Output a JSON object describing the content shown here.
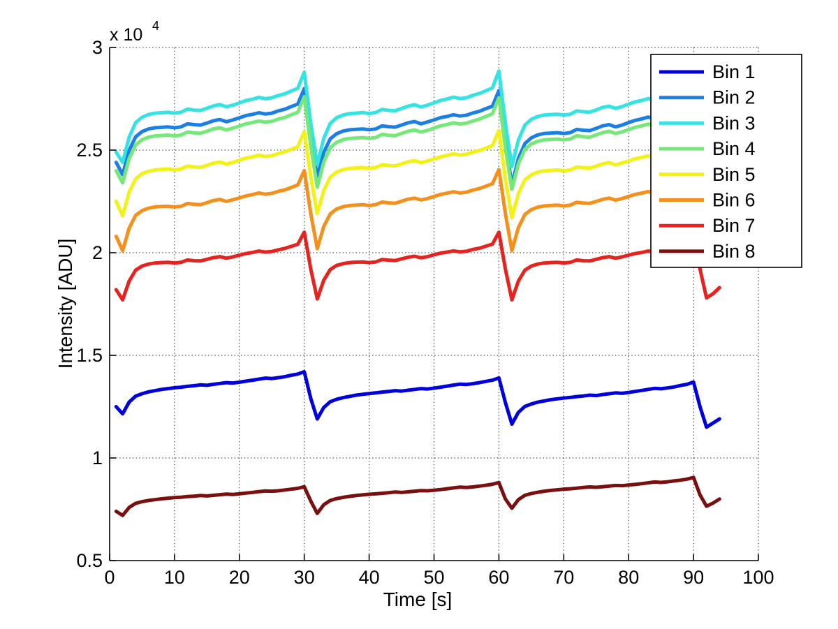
{
  "chart_data": {
    "type": "line",
    "title": "",
    "xlabel": "Time [s]",
    "ylabel": "Intensity [ADU]",
    "y_multiplier": {
      "base": "x 10",
      "exp": "4"
    },
    "xlim": [
      0,
      100
    ],
    "ylim": [
      0.5,
      3
    ],
    "xticks": [
      0,
      10,
      20,
      30,
      40,
      50,
      60,
      70,
      80,
      90,
      100
    ],
    "yticks": [
      0.5,
      1,
      1.5,
      2,
      2.5,
      3
    ],
    "grid": true,
    "grid_style": "dotted",
    "grid_color": "#262626",
    "axis_color": "#000000",
    "x_start": 1,
    "x_step": 1,
    "x_units": "s",
    "y_units_scale": "values are in units of 1e4 ADU",
    "legend_position": "northeast",
    "series": [
      {
        "name": "Bin 1",
        "color": "#0000dd",
        "values": [
          1.25,
          1.215,
          1.272,
          1.301,
          1.313,
          1.322,
          1.328,
          1.334,
          1.338,
          1.342,
          1.345,
          1.349,
          1.352,
          1.356,
          1.354,
          1.359,
          1.363,
          1.367,
          1.365,
          1.369,
          1.374,
          1.379,
          1.384,
          1.389,
          1.387,
          1.391,
          1.396,
          1.403,
          1.409,
          1.42,
          1.29,
          1.19,
          1.246,
          1.274,
          1.286,
          1.294,
          1.3,
          1.306,
          1.31,
          1.314,
          1.317,
          1.321,
          1.324,
          1.328,
          1.326,
          1.33,
          1.334,
          1.338,
          1.336,
          1.34,
          1.345,
          1.35,
          1.355,
          1.36,
          1.358,
          1.362,
          1.367,
          1.373,
          1.379,
          1.39,
          1.27,
          1.165,
          1.222,
          1.251,
          1.263,
          1.272,
          1.278,
          1.284,
          1.288,
          1.292,
          1.295,
          1.299,
          1.302,
          1.306,
          1.304,
          1.309,
          1.313,
          1.317,
          1.315,
          1.319,
          1.324,
          1.329,
          1.334,
          1.339,
          1.337,
          1.341,
          1.346,
          1.353,
          1.359,
          1.37,
          1.25,
          1.15,
          1.17,
          1.19
        ]
      },
      {
        "name": "Bin 2",
        "color": "#1b7fe4",
        "values": [
          2.44,
          2.38,
          2.498,
          2.565,
          2.59,
          2.603,
          2.609,
          2.611,
          2.613,
          2.609,
          2.613,
          2.628,
          2.624,
          2.622,
          2.632,
          2.643,
          2.649,
          2.638,
          2.647,
          2.657,
          2.668,
          2.674,
          2.682,
          2.676,
          2.68,
          2.691,
          2.699,
          2.712,
          2.724,
          2.8,
          2.56,
          2.37,
          2.488,
          2.555,
          2.58,
          2.593,
          2.599,
          2.601,
          2.603,
          2.599,
          2.603,
          2.618,
          2.614,
          2.612,
          2.622,
          2.633,
          2.639,
          2.628,
          2.637,
          2.647,
          2.658,
          2.664,
          2.672,
          2.666,
          2.67,
          2.681,
          2.689,
          2.702,
          2.714,
          2.79,
          2.54,
          2.33,
          2.459,
          2.532,
          2.56,
          2.574,
          2.581,
          2.583,
          2.585,
          2.581,
          2.585,
          2.601,
          2.597,
          2.595,
          2.606,
          2.618,
          2.624,
          2.613,
          2.622,
          2.634,
          2.645,
          2.652,
          2.661,
          2.654,
          2.659,
          2.67,
          2.68,
          2.693,
          2.707,
          2.79,
          2.55,
          2.35,
          2.37,
          2.4
        ]
      },
      {
        "name": "Bin 3",
        "color": "#35e3e3",
        "values": [
          2.49,
          2.44,
          2.563,
          2.634,
          2.66,
          2.673,
          2.68,
          2.682,
          2.684,
          2.68,
          2.684,
          2.7,
          2.695,
          2.693,
          2.704,
          2.715,
          2.722,
          2.711,
          2.719,
          2.73,
          2.741,
          2.748,
          2.757,
          2.75,
          2.755,
          2.766,
          2.774,
          2.788,
          2.801,
          2.88,
          2.63,
          2.43,
          2.557,
          2.63,
          2.658,
          2.671,
          2.678,
          2.68,
          2.683,
          2.678,
          2.683,
          2.698,
          2.694,
          2.692,
          2.703,
          2.714,
          2.721,
          2.71,
          2.719,
          2.73,
          2.742,
          2.749,
          2.758,
          2.751,
          2.755,
          2.767,
          2.776,
          2.789,
          2.803,
          2.885,
          2.63,
          2.42,
          2.549,
          2.622,
          2.65,
          2.664,
          2.671,
          2.673,
          2.675,
          2.671,
          2.675,
          2.691,
          2.687,
          2.685,
          2.696,
          2.708,
          2.714,
          2.703,
          2.712,
          2.724,
          2.735,
          2.742,
          2.751,
          2.744,
          2.749,
          2.76,
          2.77,
          2.783,
          2.797,
          2.88,
          2.63,
          2.42,
          2.44,
          2.47
        ]
      },
      {
        "name": "Bin 4",
        "color": "#74e878",
        "values": [
          2.4,
          2.34,
          2.458,
          2.525,
          2.55,
          2.563,
          2.569,
          2.571,
          2.573,
          2.569,
          2.573,
          2.588,
          2.584,
          2.582,
          2.592,
          2.603,
          2.609,
          2.598,
          2.607,
          2.617,
          2.628,
          2.634,
          2.642,
          2.636,
          2.64,
          2.651,
          2.659,
          2.672,
          2.684,
          2.76,
          2.52,
          2.32,
          2.442,
          2.511,
          2.538,
          2.551,
          2.557,
          2.559,
          2.561,
          2.557,
          2.561,
          2.577,
          2.572,
          2.57,
          2.581,
          2.592,
          2.598,
          2.588,
          2.596,
          2.607,
          2.618,
          2.625,
          2.633,
          2.627,
          2.631,
          2.642,
          2.651,
          2.664,
          2.677,
          2.755,
          2.51,
          2.31,
          2.433,
          2.504,
          2.53,
          2.543,
          2.55,
          2.552,
          2.554,
          2.55,
          2.554,
          2.57,
          2.565,
          2.563,
          2.574,
          2.585,
          2.592,
          2.581,
          2.589,
          2.6,
          2.611,
          2.618,
          2.627,
          2.62,
          2.625,
          2.636,
          2.644,
          2.658,
          2.671,
          2.75,
          2.51,
          2.32,
          2.34,
          2.37
        ]
      },
      {
        "name": "Bin 5",
        "color": "#f2f218",
        "values": [
          2.25,
          2.18,
          2.295,
          2.36,
          2.385,
          2.397,
          2.403,
          2.406,
          2.408,
          2.403,
          2.408,
          2.422,
          2.418,
          2.416,
          2.426,
          2.436,
          2.442,
          2.432,
          2.44,
          2.451,
          2.461,
          2.467,
          2.475,
          2.469,
          2.473,
          2.483,
          2.492,
          2.504,
          2.516,
          2.59,
          2.37,
          2.19,
          2.303,
          2.368,
          2.393,
          2.405,
          2.411,
          2.413,
          2.415,
          2.411,
          2.415,
          2.429,
          2.425,
          2.423,
          2.433,
          2.443,
          2.449,
          2.439,
          2.447,
          2.457,
          2.467,
          2.474,
          2.482,
          2.476,
          2.48,
          2.49,
          2.498,
          2.51,
          2.522,
          2.595,
          2.36,
          2.17,
          2.288,
          2.355,
          2.38,
          2.393,
          2.399,
          2.401,
          2.403,
          2.399,
          2.403,
          2.418,
          2.414,
          2.412,
          2.422,
          2.433,
          2.439,
          2.428,
          2.437,
          2.447,
          2.458,
          2.464,
          2.472,
          2.466,
          2.47,
          2.481,
          2.489,
          2.502,
          2.514,
          2.59,
          2.36,
          2.18,
          2.2,
          2.23
        ]
      },
      {
        "name": "Bin 6",
        "color": "#f6901d",
        "values": [
          2.08,
          2.01,
          2.119,
          2.182,
          2.205,
          2.217,
          2.223,
          2.225,
          2.226,
          2.223,
          2.226,
          2.24,
          2.236,
          2.234,
          2.244,
          2.254,
          2.26,
          2.25,
          2.258,
          2.267,
          2.277,
          2.283,
          2.291,
          2.285,
          2.289,
          2.299,
          2.306,
          2.318,
          2.33,
          2.4,
          2.19,
          2.02,
          2.128,
          2.189,
          2.213,
          2.224,
          2.23,
          2.232,
          2.234,
          2.23,
          2.234,
          2.247,
          2.243,
          2.241,
          2.251,
          2.261,
          2.266,
          2.257,
          2.264,
          2.274,
          2.284,
          2.29,
          2.297,
          2.291,
          2.295,
          2.305,
          2.313,
          2.324,
          2.336,
          2.405,
          2.19,
          2.01,
          2.122,
          2.186,
          2.21,
          2.222,
          2.228,
          2.23,
          2.232,
          2.228,
          2.232,
          2.246,
          2.242,
          2.24,
          2.25,
          2.26,
          2.266,
          2.256,
          2.264,
          2.274,
          2.284,
          2.29,
          2.298,
          2.292,
          2.296,
          2.306,
          2.314,
          2.326,
          2.338,
          2.41,
          2.18,
          2.0,
          2.02,
          2.05
        ]
      },
      {
        "name": "Bin 7",
        "color": "#e6231e",
        "values": [
          1.82,
          1.77,
          1.862,
          1.915,
          1.935,
          1.945,
          1.95,
          1.952,
          1.953,
          1.95,
          1.953,
          1.965,
          1.961,
          1.96,
          1.968,
          1.976,
          1.981,
          1.973,
          1.98,
          1.988,
          1.996,
          2.001,
          2.008,
          2.003,
          2.006,
          2.014,
          2.021,
          2.031,
          2.041,
          2.1,
          1.92,
          1.775,
          1.866,
          1.918,
          1.938,
          1.947,
          1.952,
          1.954,
          1.955,
          1.952,
          1.955,
          1.967,
          1.964,
          1.962,
          1.97,
          1.978,
          1.983,
          1.975,
          1.981,
          1.99,
          1.998,
          2.003,
          2.009,
          2.004,
          2.007,
          2.016,
          2.022,
          2.032,
          2.042,
          2.1,
          1.92,
          1.77,
          1.862,
          1.915,
          1.935,
          1.945,
          1.95,
          1.952,
          1.953,
          1.95,
          1.953,
          1.965,
          1.961,
          1.96,
          1.968,
          1.976,
          1.981,
          1.973,
          1.98,
          1.988,
          1.996,
          2.001,
          2.008,
          2.003,
          2.006,
          2.014,
          2.021,
          2.031,
          2.041,
          2.1,
          1.92,
          1.78,
          1.8,
          1.83
        ]
      },
      {
        "name": "Bin 8",
        "color": "#7a0f0f",
        "values": [
          0.74,
          0.72,
          0.759,
          0.779,
          0.787,
          0.793,
          0.797,
          0.801,
          0.804,
          0.807,
          0.809,
          0.812,
          0.814,
          0.817,
          0.815,
          0.818,
          0.821,
          0.824,
          0.822,
          0.825,
          0.829,
          0.832,
          0.836,
          0.839,
          0.838,
          0.84,
          0.844,
          0.848,
          0.852,
          0.86,
          0.79,
          0.73,
          0.772,
          0.793,
          0.802,
          0.808,
          0.813,
          0.817,
          0.82,
          0.823,
          0.825,
          0.828,
          0.831,
          0.834,
          0.832,
          0.835,
          0.838,
          0.841,
          0.84,
          0.843,
          0.846,
          0.85,
          0.854,
          0.858,
          0.856,
          0.859,
          0.863,
          0.867,
          0.872,
          0.88,
          0.8,
          0.755,
          0.797,
          0.818,
          0.827,
          0.833,
          0.838,
          0.842,
          0.845,
          0.848,
          0.85,
          0.853,
          0.856,
          0.859,
          0.857,
          0.86,
          0.863,
          0.866,
          0.865,
          0.868,
          0.871,
          0.875,
          0.879,
          0.883,
          0.881,
          0.884,
          0.888,
          0.892,
          0.897,
          0.905,
          0.82,
          0.765,
          0.78,
          0.8
        ]
      }
    ],
    "legend_items": [
      "Bin 1",
      "Bin 2",
      "Bin 3",
      "Bin 4",
      "Bin 5",
      "Bin 6",
      "Bin 7",
      "Bin 8"
    ]
  }
}
